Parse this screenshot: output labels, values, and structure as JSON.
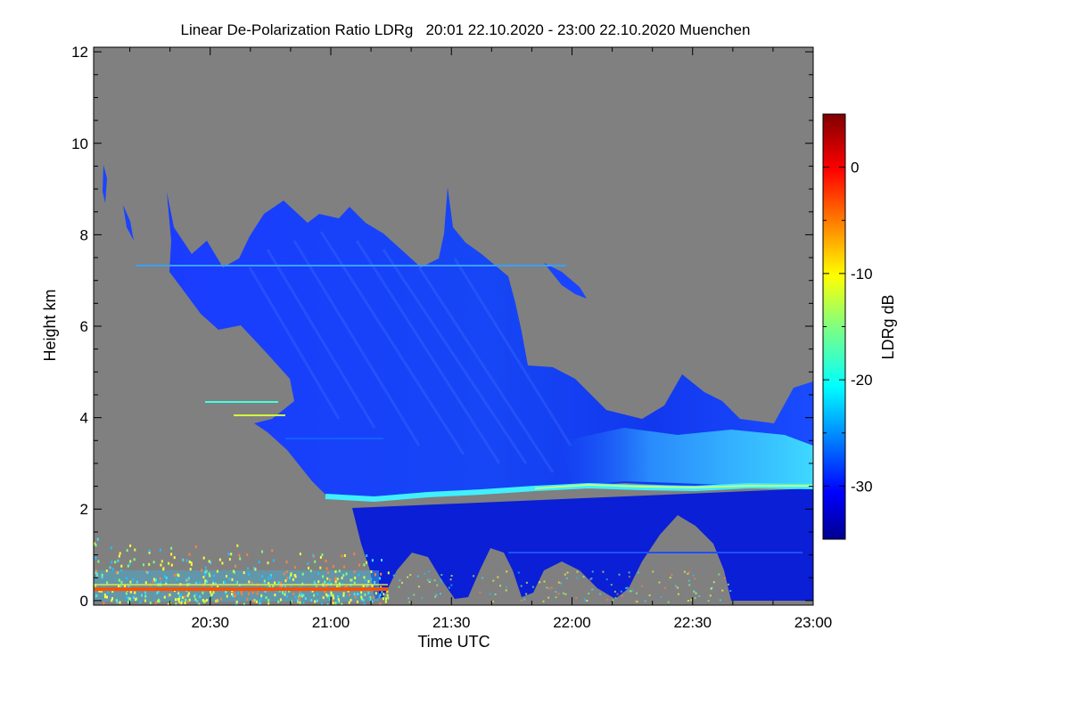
{
  "chart_data": {
    "type": "heatmap",
    "title": "Linear De-Polarization Ratio LDRg   20:01 22.10.2020 - 23:00 22.10.2020 Muenchen",
    "xlabel": "Time UTC",
    "ylabel": "Height km",
    "colorbar_label": "LDRg dB",
    "x_range": [
      "20:01",
      "23:00"
    ],
    "y_range": [
      -0.1,
      12.1
    ],
    "x_ticks": [
      "20:30",
      "21:00",
      "21:30",
      "22:00",
      "22:30",
      "23:00"
    ],
    "x_tick_minutes": [
      29,
      59,
      89,
      119,
      149,
      179
    ],
    "y_ticks": [
      "0",
      "2",
      "4",
      "6",
      "8",
      "10",
      "12"
    ],
    "y_tick_values": [
      0,
      2,
      4,
      6,
      8,
      10,
      12
    ],
    "colorbar_range": [
      -35,
      5
    ],
    "colorbar_ticks": [
      "0",
      "-10",
      "-20",
      "-30"
    ],
    "colorbar_tick_values": [
      0,
      -10,
      -20,
      -30
    ],
    "no_data_color": "#808080",
    "features": [
      {
        "name": "ice cloud",
        "time_start": "20:20",
        "time_end": "23:00",
        "base_km": 2.5,
        "top_km": 9.0,
        "ldr_db": -30
      },
      {
        "name": "melting layer",
        "time_start": "21:00",
        "time_end": "23:00",
        "height_km": 2.4,
        "ldr_db": -18
      },
      {
        "name": "rain",
        "time_start": "21:08",
        "time_end": "23:00",
        "base_km": 0,
        "top_km": 2.3,
        "ldr_db": -33
      },
      {
        "name": "near-surface clutter",
        "time_start": "20:01",
        "time_end": "21:15",
        "base_km": 0,
        "top_km": 1.5,
        "ldr_db": -15
      }
    ]
  }
}
